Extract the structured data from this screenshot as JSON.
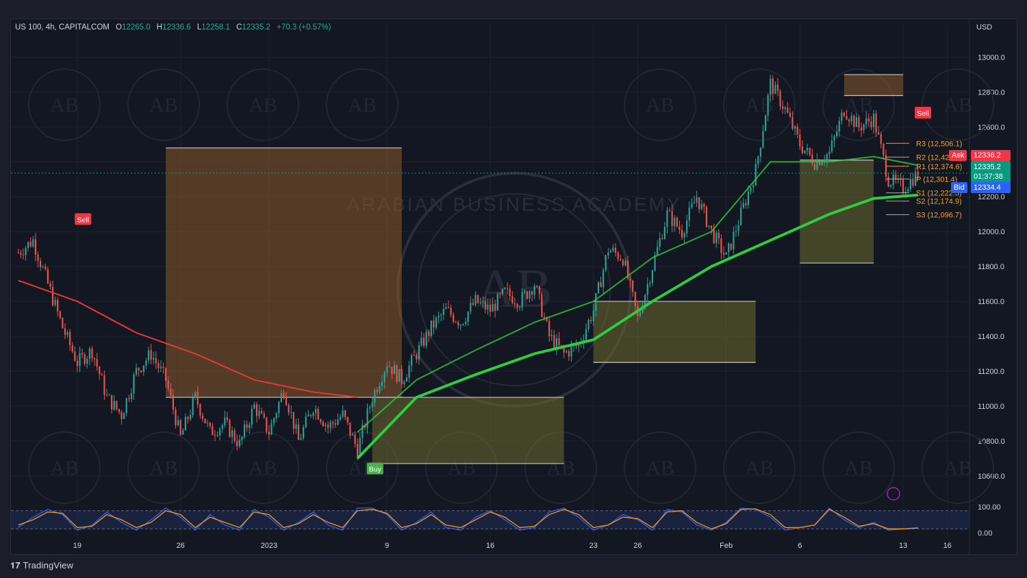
{
  "header": {
    "symbol": "US 100, 4h, CAPITALCOM",
    "open_label": "O",
    "open": "12265.0",
    "high_label": "H",
    "high": "12336.6",
    "low_label": "L",
    "low": "12258.1",
    "close_label": "C",
    "close": "12335.2",
    "change": "+70.3 (+0.57%)"
  },
  "currency": "USD",
  "brand": "TradingView",
  "watermark_text": "ARABIAN BUSINESS ACADEMY",
  "watermark_logo": "AB",
  "price_tags": {
    "ask_label": "Ask",
    "ask": "12336.2",
    "last": "12335.2",
    "countdown": "01:37:38",
    "bid_label": "Bid",
    "bid": "12334.4"
  },
  "signals": [
    {
      "label": "Sell",
      "x": 11.4,
      "price": 12070
    },
    {
      "label": "Buy",
      "x": 62.9,
      "price": 10640
    },
    {
      "label": "Sell",
      "x": 159.5,
      "price": 12680
    }
  ],
  "colors": {
    "up": "#26a69a",
    "down": "#ef5350",
    "green_ma": "#2ecc40",
    "red_ma": "#e53935",
    "box_orange": "#8a5a2b",
    "box_olive": "#6b6a2e",
    "ask": "#f23645",
    "bid": "#2962ff",
    "last": "#089981",
    "pivot": "#f0a030"
  },
  "chart_data": [
    {
      "type": "candlestick",
      "title": "US 100, 4h, CAPITALCOM",
      "x_unit": "days since Dec 15",
      "x_ticks": [
        {
          "label": "19",
          "x": 4
        },
        {
          "label": "26",
          "x": 11
        },
        {
          "label": "2023",
          "x": 17
        },
        {
          "label": "9",
          "x": 25
        },
        {
          "label": "16",
          "x": 32
        },
        {
          "label": "23",
          "x": 39
        },
        {
          "label": "26",
          "x": 42
        },
        {
          "label": "Feb",
          "x": 48
        },
        {
          "label": "6",
          "x": 53
        },
        {
          "label": "13",
          "x": 60
        },
        {
          "label": "16",
          "x": 63
        }
      ],
      "y_ticks": [
        "13000.0",
        "12800.0",
        "12600.0",
        "12400.0",
        "12200.0",
        "12000.0",
        "11800.0",
        "11600.0",
        "11400.0",
        "11200.0",
        "11000.0",
        "10800.0",
        "10600.0"
      ],
      "ylim": [
        10450,
        13100
      ],
      "pivots": [
        {
          "label": "R3 (12,506.1)",
          "value": 12506.1
        },
        {
          "label": "R2 (12,427.0)",
          "value": 12427.0
        },
        {
          "label": "R1 (12,374.6)",
          "value": 12374.6
        },
        {
          "label": "P (12,301.4)",
          "value": 12301.4
        },
        {
          "label": "S1 (12,222.3)",
          "value": 12222.3
        },
        {
          "label": "S2 (12,174.9)",
          "value": 12174.9
        },
        {
          "label": "S3 (12,096.7)",
          "value": 12096.7
        }
      ],
      "price_path": [
        [
          0,
          11880
        ],
        [
          1,
          11950
        ],
        [
          2,
          11700
        ],
        [
          3,
          11450
        ],
        [
          4,
          11250
        ],
        [
          5,
          11320
        ],
        [
          6,
          11050
        ],
        [
          7,
          10950
        ],
        [
          8,
          11200
        ],
        [
          9,
          11300
        ],
        [
          10,
          11150
        ],
        [
          11,
          10820
        ],
        [
          12,
          11050
        ],
        [
          13,
          10850
        ],
        [
          14,
          10900
        ],
        [
          15,
          10780
        ],
        [
          16,
          11000
        ],
        [
          17,
          10850
        ],
        [
          18,
          11100
        ],
        [
          19,
          10800
        ],
        [
          20,
          11000
        ],
        [
          21,
          10880
        ],
        [
          22,
          10950
        ],
        [
          23,
          10750
        ],
        [
          24,
          11050
        ],
        [
          25,
          11250
        ],
        [
          26,
          11150
        ],
        [
          27,
          11300
        ],
        [
          28,
          11450
        ],
        [
          29,
          11550
        ],
        [
          30,
          11480
        ],
        [
          31,
          11600
        ],
        [
          32,
          11550
        ],
        [
          33,
          11650
        ],
        [
          34,
          11600
        ],
        [
          35,
          11700
        ],
        [
          36,
          11400
        ],
        [
          37,
          11300
        ],
        [
          38,
          11350
        ],
        [
          39,
          11550
        ],
        [
          40,
          11900
        ],
        [
          41,
          11850
        ],
        [
          42,
          11500
        ],
        [
          43,
          11800
        ],
        [
          44,
          12100
        ],
        [
          45,
          12000
        ],
        [
          46,
          12200
        ],
        [
          47,
          12000
        ],
        [
          48,
          11850
        ],
        [
          49,
          12100
        ],
        [
          50,
          12350
        ],
        [
          51,
          12850
        ],
        [
          52,
          12700
        ],
        [
          53,
          12500
        ],
        [
          54,
          12400
        ],
        [
          55,
          12450
        ],
        [
          56,
          12700
        ],
        [
          57,
          12600
        ],
        [
          58,
          12650
        ],
        [
          59,
          12300
        ],
        [
          60,
          12250
        ],
        [
          61,
          12335
        ]
      ],
      "moving_averages": [
        {
          "color": "#e53935",
          "points": [
            [
              0,
              11720
            ],
            [
              4,
              11600
            ],
            [
              8,
              11420
            ],
            [
              12,
              11300
            ],
            [
              16,
              11150
            ],
            [
              20,
              11080
            ],
            [
              23,
              11050
            ]
          ]
        },
        {
          "color": "#2ecc40",
          "points": [
            [
              23,
              10700
            ],
            [
              27,
              11050
            ],
            [
              31,
              11180
            ],
            [
              35,
              11300
            ],
            [
              39,
              11380
            ],
            [
              43,
              11600
            ],
            [
              47,
              11800
            ],
            [
              51,
              11950
            ],
            [
              55,
              12100
            ],
            [
              58,
              12190
            ],
            [
              61,
              12210
            ]
          ]
        },
        {
          "color": "#2ecc40",
          "points": [
            [
              23,
              10850
            ],
            [
              27,
              11150
            ],
            [
              31,
              11320
            ],
            [
              35,
              11480
            ],
            [
              39,
              11600
            ],
            [
              43,
              11850
            ],
            [
              47,
              12000
            ],
            [
              51,
              12400
            ],
            [
              55,
              12400
            ],
            [
              58,
              12430
            ],
            [
              61,
              12380
            ]
          ]
        }
      ],
      "zones": [
        {
          "kind": "supply",
          "x": [
            10,
            26
          ],
          "y": [
            11050,
            12480
          ]
        },
        {
          "kind": "demand",
          "x": [
            24,
            37
          ],
          "y": [
            10670,
            11050
          ]
        },
        {
          "kind": "demand",
          "x": [
            39,
            50
          ],
          "y": [
            11250,
            11600
          ]
        },
        {
          "kind": "demand",
          "x": [
            53,
            58
          ],
          "y": [
            11820,
            12410
          ]
        },
        {
          "kind": "supply",
          "x": [
            56,
            60
          ],
          "y": [
            12780,
            12900
          ]
        }
      ]
    },
    {
      "type": "line",
      "title": "",
      "ylim": [
        0,
        100
      ],
      "y_ticks": [
        "100.00",
        "0.00"
      ],
      "bands": [
        85,
        15
      ],
      "series": [
        {
          "color": "#2962ff",
          "values": [
            20,
            60,
            90,
            70,
            10,
            30,
            80,
            40,
            10,
            50,
            95,
            60,
            10,
            70,
            30,
            10,
            90,
            60,
            10,
            40,
            80,
            30,
            10,
            95,
            95,
            70,
            10,
            40,
            80,
            20,
            10,
            60,
            85,
            50,
            10,
            20,
            80,
            95,
            60,
            10,
            30,
            70,
            50,
            10,
            90,
            80,
            30,
            10,
            40,
            95,
            90,
            60,
            10,
            20,
            30,
            95,
            50,
            20,
            40,
            10,
            15,
            20
          ]
        },
        {
          "color": "#ff9800",
          "values": [
            30,
            50,
            80,
            75,
            20,
            25,
            70,
            50,
            20,
            40,
            85,
            70,
            20,
            60,
            40,
            20,
            80,
            70,
            20,
            35,
            70,
            40,
            20,
            85,
            90,
            75,
            20,
            35,
            70,
            30,
            20,
            50,
            80,
            60,
            20,
            25,
            70,
            90,
            70,
            20,
            30,
            60,
            55,
            20,
            80,
            85,
            40,
            15,
            35,
            90,
            92,
            70,
            20,
            20,
            30,
            90,
            60,
            25,
            35,
            15,
            15,
            18
          ]
        }
      ]
    }
  ]
}
